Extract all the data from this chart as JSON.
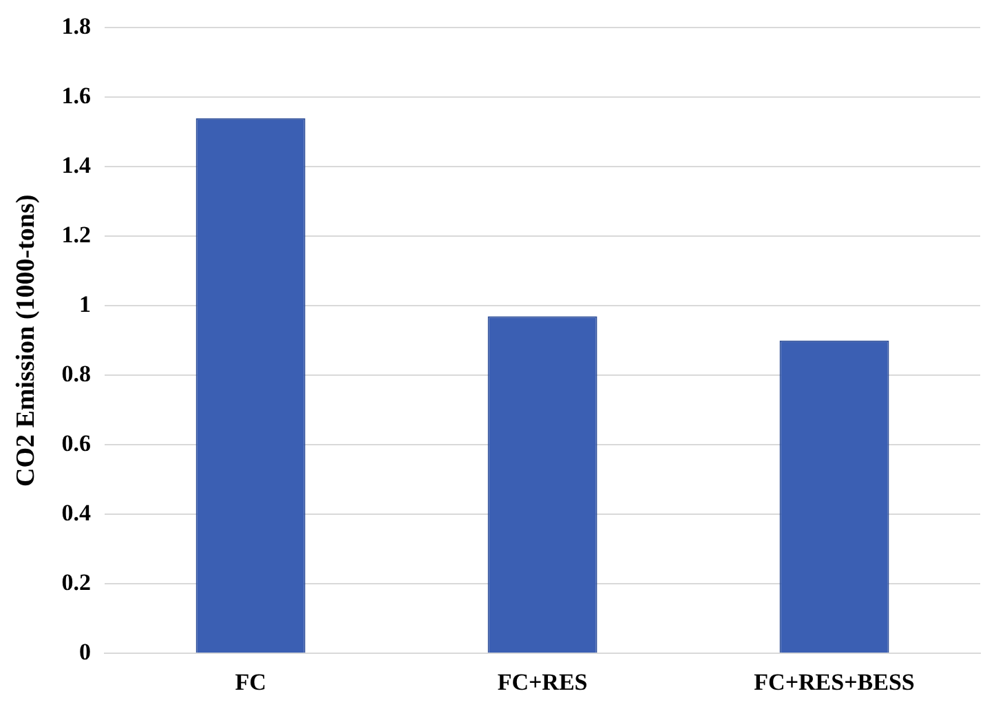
{
  "chart_data": {
    "type": "bar",
    "ylabel": "CO2 Emission (1000-tons)",
    "categories": [
      "FC",
      "FC+RES",
      "FC+RES+BESS"
    ],
    "values": [
      1.54,
      0.97,
      0.9
    ],
    "color": "#3b5fb3",
    "ylim": [
      0,
      1.8
    ],
    "yticks": [
      0,
      0.2,
      0.4,
      0.6,
      0.8,
      1,
      1.2,
      1.4,
      1.6,
      1.8
    ],
    "grid": "y"
  }
}
